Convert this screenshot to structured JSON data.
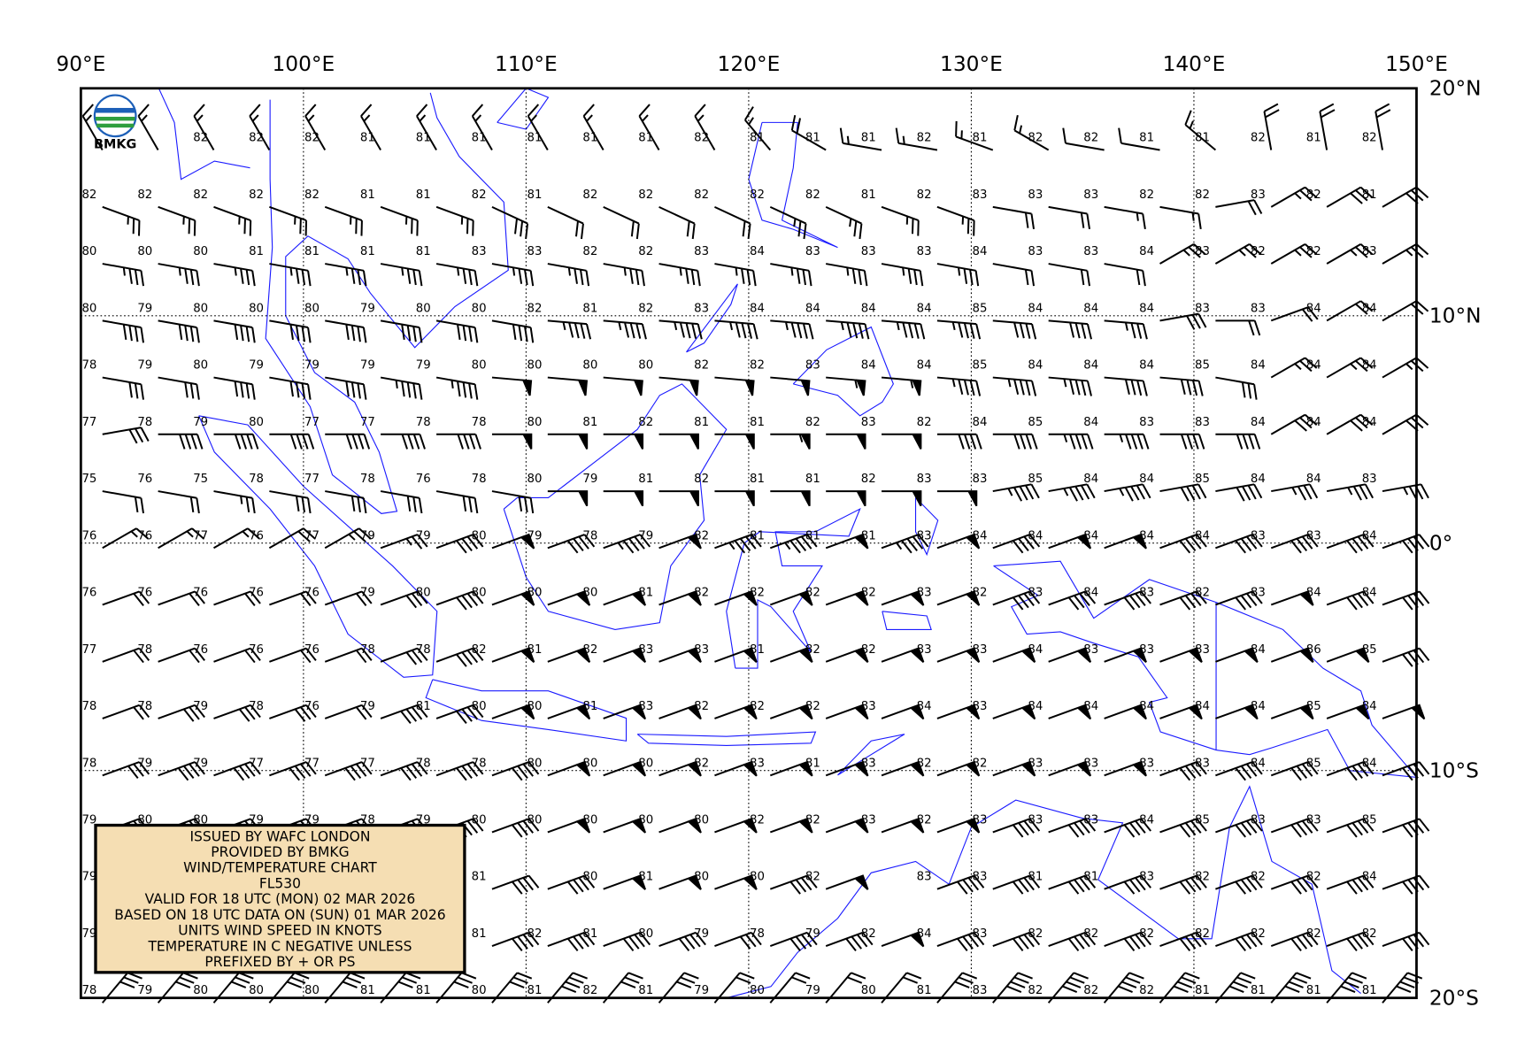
{
  "logo": {
    "text": "BMKG"
  },
  "map": {
    "lon_ticks": [
      {
        "value": 90,
        "label": "90°E"
      },
      {
        "value": 100,
        "label": "100°E"
      },
      {
        "value": 110,
        "label": "110°E"
      },
      {
        "value": 120,
        "label": "120°E"
      },
      {
        "value": 130,
        "label": "130°E"
      },
      {
        "value": 140,
        "label": "140°E"
      },
      {
        "value": 150,
        "label": "150°E"
      }
    ],
    "lat_ticks": [
      {
        "value": 20,
        "label": "20°N"
      },
      {
        "value": 10,
        "label": "10°N"
      },
      {
        "value": 0,
        "label": "0°"
      },
      {
        "value": -10,
        "label": "10°S"
      },
      {
        "value": -20,
        "label": "20°S"
      }
    ],
    "lonlim": [
      90,
      150
    ],
    "latlim": [
      -20,
      20
    ],
    "station_lons": [
      90,
      92.5,
      95,
      97.5,
      100,
      102.5,
      105,
      107.5,
      110,
      112.5,
      115,
      117.5,
      120,
      122.5,
      125,
      127.5,
      130,
      132.5,
      135,
      137.5,
      140,
      142.5,
      145,
      147.5
    ],
    "station_lats": [
      17.5,
      15,
      12.5,
      10,
      7.5,
      5,
      2.5,
      0,
      -2.5,
      -5,
      -7.5,
      -10,
      -12.5,
      -15,
      -17.5,
      -20
    ],
    "temperatures": [
      [
        null,
        null,
        82,
        82,
        82,
        81,
        81,
        81,
        81,
        81,
        81,
        82,
        81,
        81,
        81,
        82,
        81,
        82,
        82,
        81,
        81,
        82,
        81,
        82
      ],
      [
        82,
        82,
        82,
        82,
        82,
        81,
        81,
        82,
        81,
        82,
        82,
        82,
        82,
        82,
        81,
        82,
        83,
        83,
        83,
        82,
        82,
        83,
        82,
        81
      ],
      [
        80,
        80,
        80,
        81,
        81,
        81,
        81,
        83,
        83,
        82,
        82,
        83,
        84,
        83,
        83,
        83,
        84,
        83,
        83,
        84,
        83,
        82,
        82,
        83
      ],
      [
        80,
        79,
        80,
        80,
        80,
        79,
        80,
        80,
        82,
        81,
        82,
        83,
        84,
        84,
        84,
        84,
        85,
        84,
        84,
        84,
        83,
        83,
        84,
        84
      ],
      [
        78,
        79,
        80,
        79,
        79,
        79,
        79,
        80,
        80,
        80,
        80,
        82,
        82,
        83,
        84,
        84,
        85,
        84,
        84,
        84,
        85,
        84,
        84,
        84
      ],
      [
        77,
        78,
        79,
        80,
        77,
        77,
        78,
        78,
        80,
        81,
        82,
        81,
        81,
        82,
        83,
        82,
        84,
        85,
        84,
        83,
        83,
        84,
        84,
        84
      ],
      [
        75,
        76,
        75,
        78,
        77,
        78,
        76,
        78,
        80,
        79,
        81,
        82,
        81,
        81,
        82,
        83,
        83,
        85,
        84,
        84,
        85,
        84,
        84,
        83
      ],
      [
        76,
        76,
        77,
        76,
        77,
        79,
        79,
        80,
        79,
        78,
        79,
        82,
        81,
        81,
        81,
        83,
        84,
        84,
        84,
        84,
        84,
        83,
        83,
        84
      ],
      [
        76,
        76,
        76,
        76,
        76,
        79,
        80,
        80,
        80,
        80,
        81,
        82,
        82,
        82,
        82,
        83,
        82,
        83,
        84,
        83,
        82,
        83,
        84,
        84
      ],
      [
        77,
        78,
        76,
        76,
        76,
        78,
        78,
        82,
        81,
        82,
        83,
        83,
        81,
        82,
        82,
        83,
        83,
        84,
        83,
        83,
        83,
        84,
        86,
        85
      ],
      [
        78,
        78,
        79,
        78,
        76,
        79,
        81,
        80,
        80,
        81,
        83,
        82,
        82,
        82,
        83,
        84,
        83,
        84,
        84,
        84,
        84,
        84,
        85,
        84
      ],
      [
        78,
        79,
        79,
        77,
        77,
        77,
        78,
        78,
        80,
        80,
        80,
        82,
        83,
        81,
        83,
        82,
        82,
        83,
        83,
        83,
        83,
        84,
        85,
        84
      ],
      [
        79,
        80,
        80,
        79,
        79,
        78,
        79,
        80,
        80,
        80,
        80,
        80,
        82,
        82,
        83,
        82,
        83,
        83,
        83,
        84,
        85,
        83,
        83,
        85
      ],
      [
        79,
        null,
        null,
        null,
        null,
        null,
        null,
        81,
        null,
        80,
        81,
        80,
        80,
        82,
        null,
        83,
        83,
        81,
        81,
        83,
        82,
        82,
        82,
        84
      ],
      [
        79,
        null,
        null,
        null,
        null,
        null,
        null,
        81,
        82,
        81,
        80,
        79,
        78,
        79,
        82,
        84,
        83,
        82,
        82,
        82,
        82,
        82,
        82,
        82
      ],
      [
        78,
        79,
        80,
        80,
        80,
        81,
        81,
        80,
        81,
        82,
        81,
        79,
        80,
        79,
        80,
        81,
        83,
        82,
        82,
        82,
        81,
        81,
        81,
        81
      ]
    ],
    "wind_direction": [
      [
        330,
        330,
        330,
        330,
        330,
        330,
        330,
        330,
        330,
        330,
        330,
        330,
        320,
        300,
        280,
        280,
        290,
        300,
        280,
        280,
        310,
        350,
        350,
        350
      ],
      [
        110,
        110,
        110,
        110,
        110,
        110,
        110,
        115,
        115,
        115,
        115,
        115,
        115,
        115,
        110,
        110,
        100,
        100,
        100,
        100,
        80,
        60,
        60,
        60
      ],
      [
        100,
        100,
        100,
        100,
        100,
        100,
        100,
        100,
        100,
        100,
        100,
        100,
        100,
        100,
        100,
        100,
        100,
        100,
        100,
        60,
        60,
        60,
        60,
        60
      ],
      [
        100,
        100,
        100,
        100,
        100,
        100,
        100,
        100,
        95,
        95,
        95,
        95,
        95,
        95,
        95,
        95,
        95,
        95,
        95,
        80,
        90,
        70,
        60,
        60
      ],
      [
        100,
        100,
        100,
        100,
        100,
        100,
        100,
        95,
        95,
        95,
        95,
        95,
        95,
        95,
        95,
        95,
        95,
        95,
        95,
        95,
        100,
        60,
        60,
        60
      ],
      [
        80,
        90,
        90,
        90,
        90,
        90,
        90,
        90,
        90,
        90,
        90,
        90,
        90,
        90,
        90,
        90,
        90,
        90,
        90,
        90,
        90,
        60,
        60,
        60
      ],
      [
        100,
        100,
        100,
        100,
        100,
        100,
        100,
        100,
        90,
        90,
        90,
        90,
        90,
        90,
        90,
        90,
        80,
        80,
        80,
        80,
        80,
        80,
        80,
        80
      ],
      [
        60,
        60,
        60,
        60,
        60,
        70,
        70,
        70,
        70,
        70,
        70,
        70,
        70,
        70,
        70,
        70,
        70,
        70,
        70,
        70,
        70,
        70,
        70,
        70
      ],
      [
        70,
        70,
        70,
        70,
        70,
        70,
        70,
        70,
        70,
        70,
        70,
        70,
        70,
        70,
        70,
        70,
        70,
        70,
        70,
        70,
        70,
        70,
        70,
        70
      ],
      [
        70,
        70,
        70,
        70,
        70,
        70,
        70,
        70,
        70,
        70,
        70,
        70,
        70,
        70,
        70,
        70,
        70,
        70,
        70,
        70,
        70,
        70,
        70,
        70
      ],
      [
        70,
        70,
        70,
        70,
        70,
        70,
        70,
        70,
        70,
        70,
        70,
        70,
        70,
        70,
        70,
        70,
        70,
        70,
        70,
        70,
        70,
        70,
        70,
        70
      ],
      [
        70,
        70,
        70,
        70,
        70,
        70,
        70,
        70,
        70,
        70,
        70,
        70,
        70,
        70,
        70,
        70,
        70,
        70,
        70,
        70,
        70,
        70,
        70,
        70
      ],
      [
        70,
        70,
        70,
        70,
        70,
        70,
        70,
        70,
        70,
        70,
        70,
        70,
        70,
        70,
        70,
        70,
        70,
        70,
        70,
        70,
        70,
        70,
        70,
        70
      ],
      [
        70,
        null,
        null,
        null,
        null,
        null,
        null,
        70,
        70,
        70,
        70,
        70,
        70,
        70,
        null,
        70,
        70,
        70,
        70,
        70,
        70,
        70,
        70,
        70
      ],
      [
        70,
        null,
        null,
        null,
        null,
        null,
        null,
        70,
        70,
        70,
        70,
        70,
        70,
        70,
        70,
        70,
        70,
        70,
        70,
        70,
        70,
        70,
        70,
        70
      ],
      [
        40,
        40,
        40,
        40,
        40,
        40,
        40,
        40,
        40,
        40,
        40,
        40,
        40,
        40,
        40,
        40,
        40,
        40,
        40,
        40,
        40,
        40,
        40,
        40
      ]
    ],
    "wind_speed": [
      [
        15,
        15,
        15,
        15,
        15,
        15,
        15,
        15,
        15,
        15,
        15,
        15,
        15,
        20,
        15,
        15,
        15,
        15,
        10,
        10,
        15,
        20,
        20,
        20
      ],
      [
        25,
        25,
        25,
        25,
        25,
        25,
        25,
        30,
        20,
        20,
        20,
        20,
        25,
        25,
        25,
        25,
        20,
        20,
        15,
        15,
        20,
        25,
        30,
        30
      ],
      [
        35,
        35,
        35,
        35,
        35,
        35,
        35,
        35,
        35,
        35,
        35,
        35,
        35,
        35,
        35,
        35,
        20,
        20,
        20,
        25,
        25,
        25,
        25,
        25
      ],
      [
        40,
        40,
        40,
        40,
        40,
        40,
        40,
        40,
        45,
        45,
        45,
        45,
        45,
        45,
        45,
        45,
        40,
        40,
        35,
        30,
        20,
        20,
        20,
        20
      ],
      [
        30,
        30,
        40,
        40,
        40,
        45,
        45,
        50,
        50,
        50,
        50,
        50,
        50,
        55,
        55,
        45,
        45,
        45,
        40,
        40,
        30,
        25,
        25,
        25
      ],
      [
        30,
        40,
        40,
        40,
        40,
        40,
        40,
        50,
        50,
        50,
        50,
        50,
        55,
        50,
        50,
        40,
        40,
        45,
        45,
        40,
        40,
        30,
        30,
        30
      ],
      [
        20,
        20,
        25,
        30,
        30,
        30,
        30,
        30,
        50,
        50,
        50,
        50,
        50,
        50,
        50,
        50,
        45,
        45,
        45,
        40,
        40,
        35,
        35,
        35
      ],
      [
        15,
        15,
        15,
        20,
        25,
        25,
        40,
        50,
        40,
        45,
        50,
        45,
        45,
        50,
        45,
        50,
        40,
        50,
        50,
        40,
        40,
        40,
        40,
        40
      ],
      [
        20,
        20,
        20,
        20,
        20,
        30,
        40,
        50,
        50,
        50,
        50,
        50,
        50,
        50,
        50,
        50,
        40,
        40,
        40,
        40,
        40,
        50,
        40,
        40
      ],
      [
        20,
        20,
        20,
        20,
        20,
        30,
        40,
        50,
        50,
        50,
        50,
        50,
        50,
        50,
        50,
        50,
        50,
        50,
        50,
        50,
        50,
        50,
        50,
        40
      ],
      [
        20,
        30,
        30,
        30,
        20,
        40,
        40,
        50,
        50,
        50,
        50,
        50,
        50,
        50,
        50,
        50,
        50,
        50,
        50,
        50,
        50,
        50,
        50,
        50
      ],
      [
        30,
        40,
        40,
        40,
        40,
        40,
        40,
        40,
        50,
        50,
        50,
        50,
        50,
        50,
        50,
        50,
        50,
        50,
        50,
        40,
        40,
        40,
        40,
        40
      ],
      [
        40,
        40,
        40,
        40,
        40,
        40,
        40,
        40,
        50,
        50,
        50,
        50,
        50,
        50,
        50,
        50,
        40,
        40,
        40,
        40,
        40,
        40,
        40,
        40
      ],
      [
        40,
        null,
        null,
        null,
        null,
        null,
        null,
        40,
        40,
        50,
        50,
        50,
        40,
        50,
        null,
        40,
        40,
        40,
        40,
        40,
        40,
        40,
        40,
        40
      ],
      [
        40,
        null,
        null,
        null,
        null,
        null,
        null,
        40,
        40,
        40,
        40,
        30,
        40,
        40,
        50,
        40,
        40,
        40,
        40,
        40,
        40,
        40,
        40,
        40
      ],
      [
        30,
        30,
        30,
        30,
        30,
        30,
        30,
        30,
        40,
        30,
        30,
        20,
        20,
        20,
        20,
        30,
        40,
        40,
        40,
        40,
        40,
        40,
        40,
        40
      ]
    ]
  },
  "info_box": {
    "lines": [
      "ISSUED BY WAFC LONDON",
      "PROVIDED BY BMKG",
      "WIND/TEMPERATURE CHART",
      "FL530",
      "VALID FOR 18 UTC (MON) 02 MAR 2026",
      "BASED ON 18 UTC DATA ON (SUN) 01 MAR 2026",
      "UNITS WIND SPEED IN KNOTS",
      "TEMPERATURE IN C NEGATIVE UNLESS",
      "PREFIXED BY + OR PS"
    ]
  }
}
